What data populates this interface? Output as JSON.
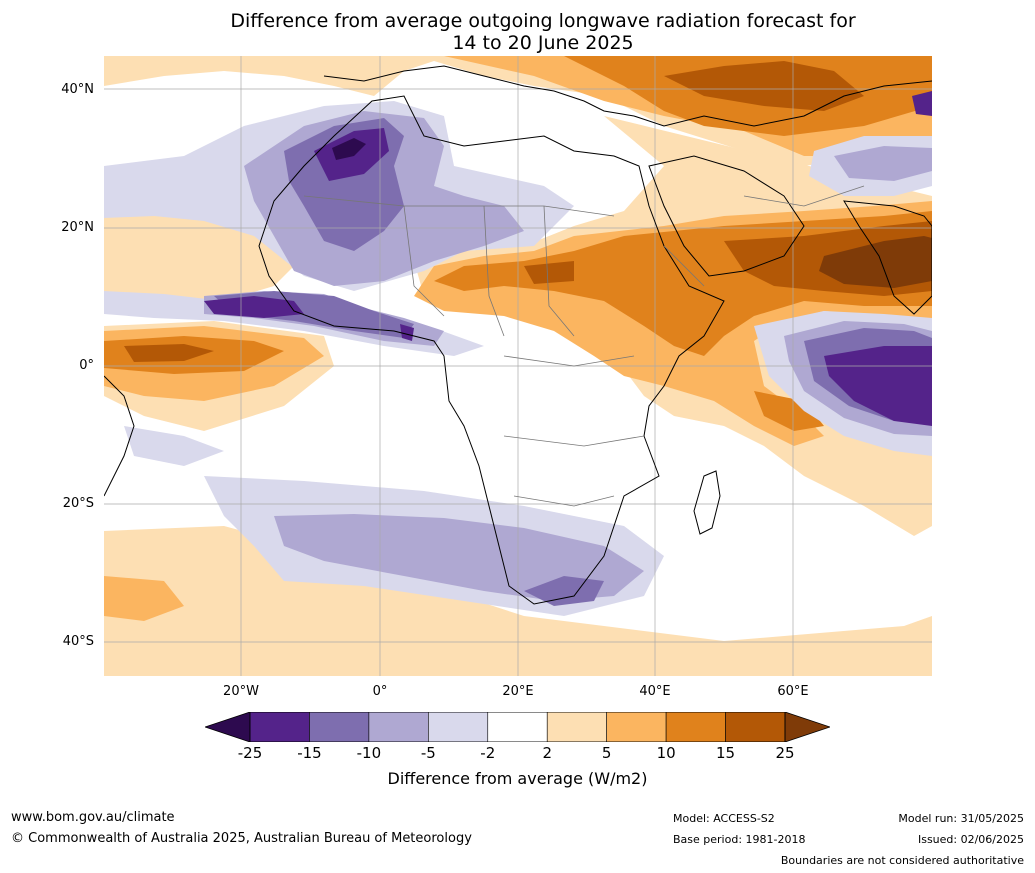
{
  "title_line1": "Difference from average outgoing longwave radiation forecast for",
  "title_line2": "14 to 20 June 2025",
  "lat_labels": [
    "40°N",
    "20°N",
    "0°",
    "20°S",
    "40°S"
  ],
  "lon_labels": [
    "20°W",
    "0°",
    "20°E",
    "40°E",
    "60°E"
  ],
  "colorbar": {
    "ticks": [
      "-25",
      "-15",
      "-10",
      "-5",
      "-2",
      "2",
      "5",
      "10",
      "15",
      "25"
    ],
    "colors": [
      "#2d0a4f",
      "#54238a",
      "#7e6eaf",
      "#afa8d2",
      "#d9d9ec",
      "#ffffff",
      "#fddfb3",
      "#fbb560",
      "#e0821c",
      "#b35806",
      "#7f3b08"
    ],
    "label": "Difference from average (W/m2)"
  },
  "footer": {
    "url": "www.bom.gov.au/climate",
    "copyright": "© Commonwealth of Australia 2025, Australian Bureau of Meteorology",
    "model": "Model: ACCESS-S2",
    "base_period": "Base period: 1981-2018",
    "model_run": "Model run: 31/05/2025",
    "issued": "Issued: 02/06/2025",
    "disclaimer": "Boundaries are not considered authoritative"
  }
}
